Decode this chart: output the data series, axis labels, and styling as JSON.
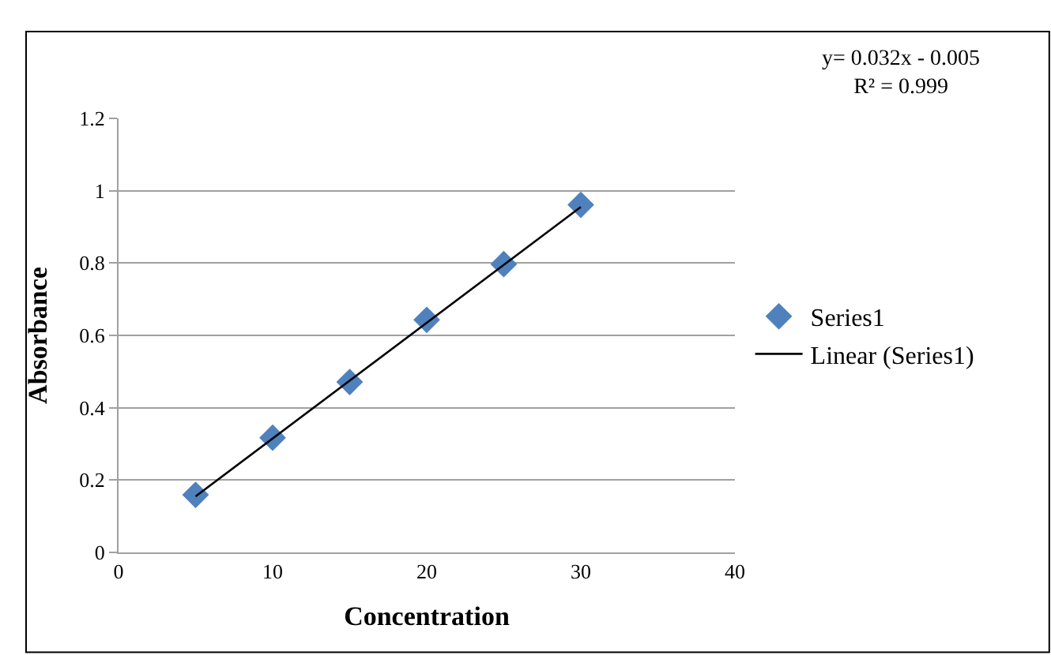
{
  "chart_data": {
    "type": "scatter",
    "xlabel": "Concentration",
    "ylabel": "Absorbance",
    "series": [
      {
        "name": "Series1",
        "color": "#4f81bd",
        "marker": "diamond",
        "x": [
          5,
          10,
          15,
          20,
          25,
          30
        ],
        "values": [
          0.159,
          0.317,
          0.471,
          0.643,
          0.797,
          0.961
        ]
      },
      {
        "name": "Linear (Series1)",
        "type": "line",
        "color": "#000000",
        "marker": "none",
        "line_style": "solid",
        "x": [
          5,
          30
        ],
        "values": [
          0.155,
          0.955
        ]
      }
    ],
    "annotations": [
      "y= 0.032x - 0.005\nR² = 0.999"
    ],
    "xlim": [
      0,
      40
    ],
    "xticks": [
      0,
      10,
      20,
      30,
      40
    ],
    "ylim": [
      0,
      1.2
    ],
    "yticks": [
      0,
      0.2,
      0.4,
      0.6,
      0.8,
      1,
      1.2
    ],
    "grid": "y",
    "legend": "right"
  }
}
